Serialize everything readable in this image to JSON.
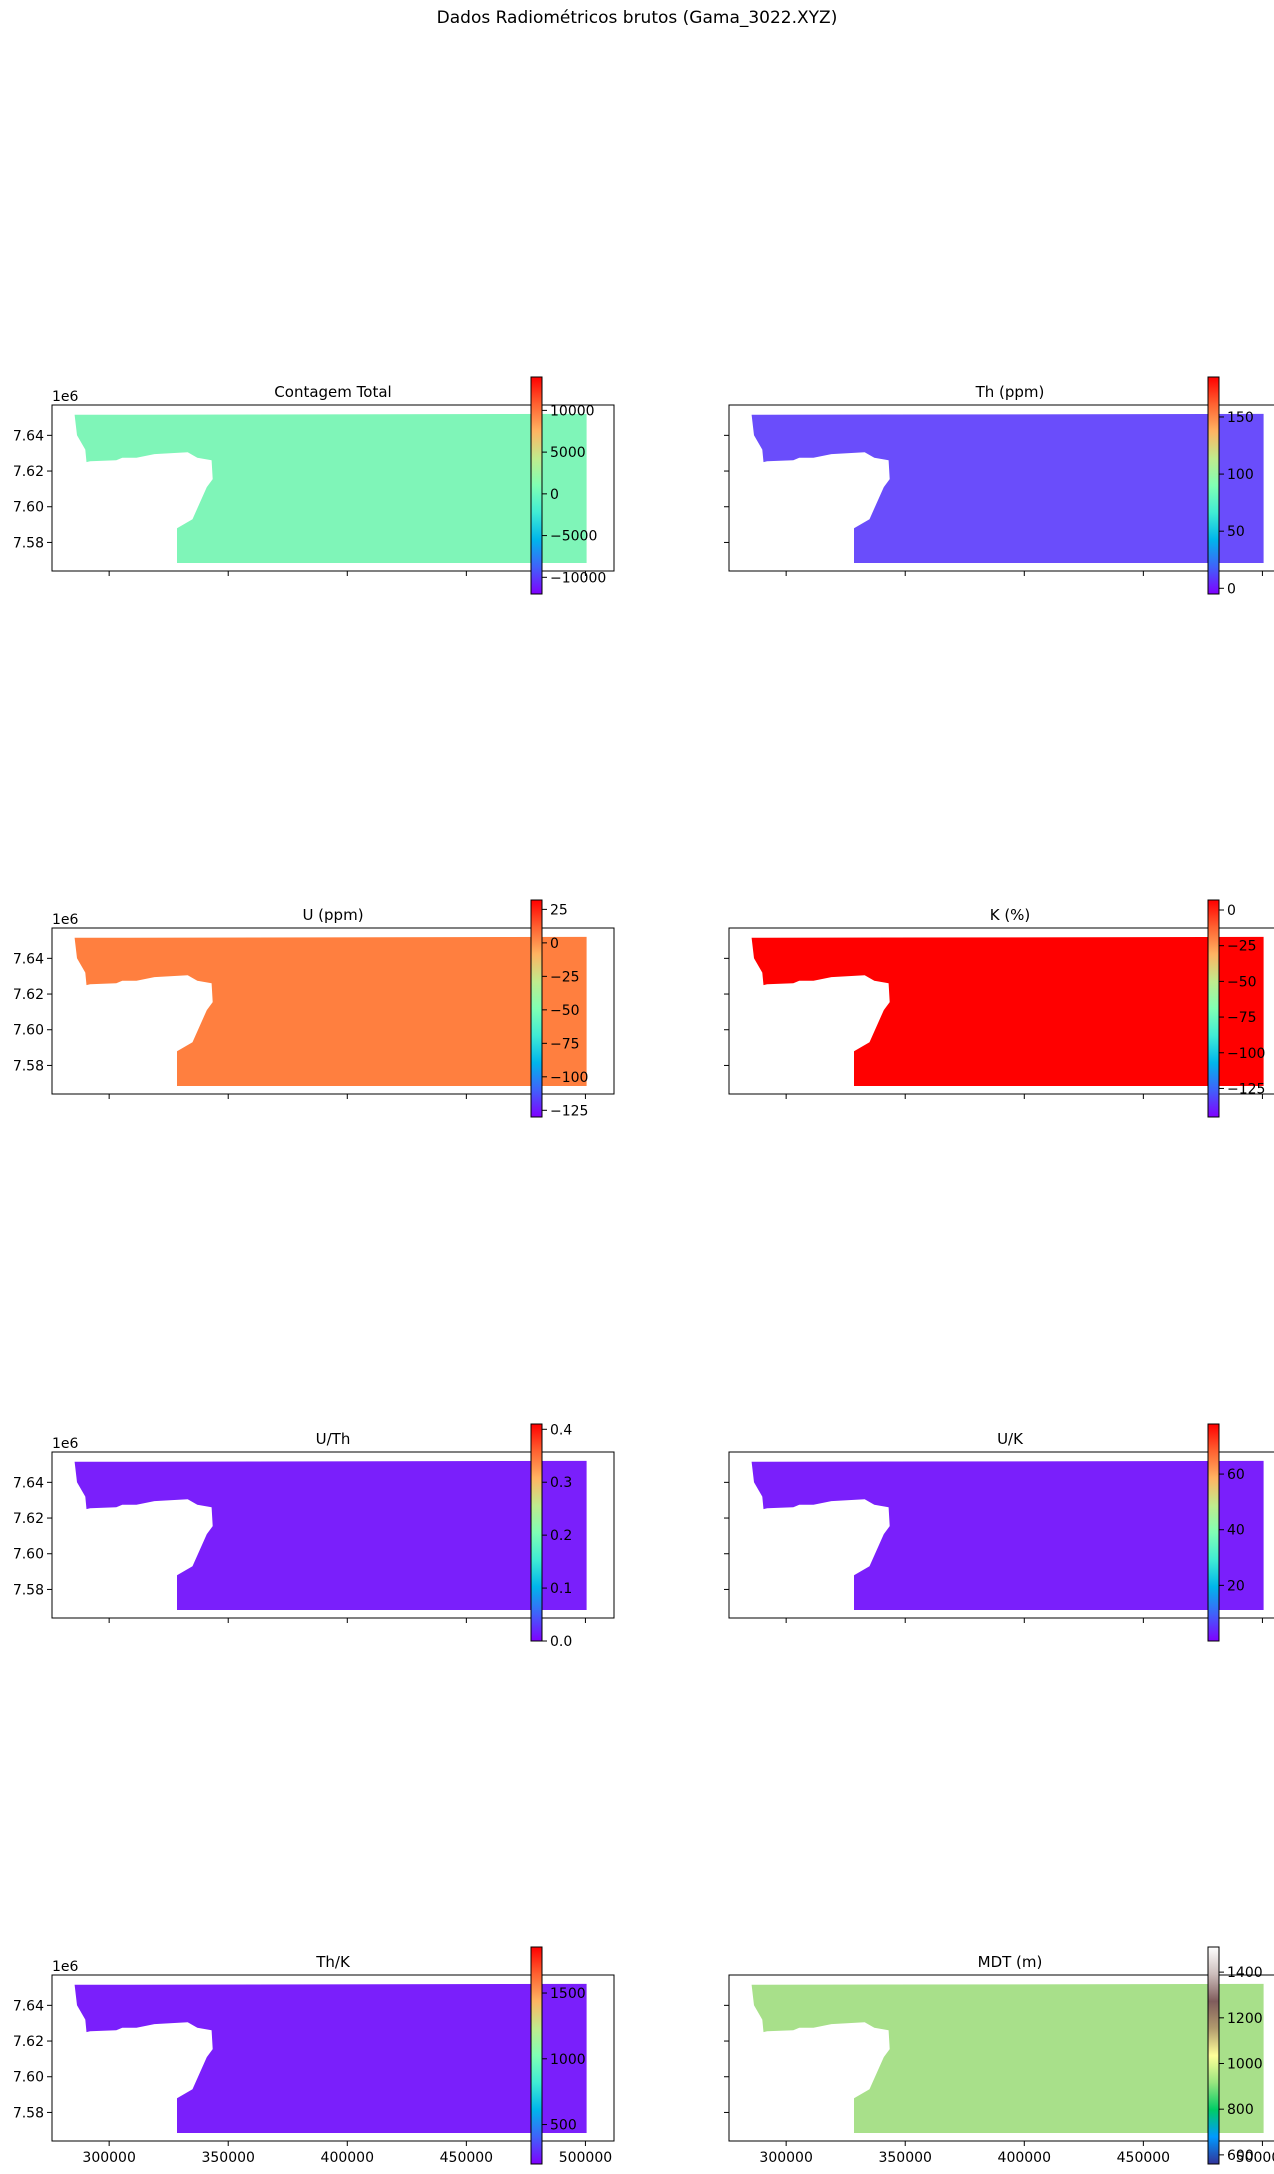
{
  "figure": {
    "title": "Dados Radiométricos brutos (Gama_3022.XYZ)",
    "x_ticks": [
      "300000",
      "350000",
      "400000",
      "450000",
      "500000"
    ],
    "y_ticks": [
      "7.64",
      "7.62",
      "7.60",
      "7.58"
    ],
    "y_offset_label": "1e6"
  },
  "chart_data": [
    {
      "type": "heatmap",
      "title": "Contagem Total",
      "colormap": "rainbow",
      "xlim": [
        276000,
        512000
      ],
      "ylim": [
        7564000,
        7657000
      ],
      "colorbar_range": [
        -12000,
        14000
      ],
      "colorbar_ticks": [
        "10000",
        "5000",
        "0",
        "−5000",
        "−10000"
      ],
      "colorbar_tick_values": [
        10000,
        5000,
        0,
        -5000,
        -10000
      ],
      "fill_color": "#7ff5b8",
      "show_x_labels": false,
      "show_y_labels": true
    },
    {
      "type": "heatmap",
      "title": "Th (ppm)",
      "colormap": "rainbow",
      "xlim": [
        276000,
        512000
      ],
      "ylim": [
        7564000,
        7657000
      ],
      "colorbar_range": [
        -5,
        185
      ],
      "colorbar_ticks": [
        "150",
        "100",
        "50",
        "0"
      ],
      "colorbar_tick_values": [
        150,
        100,
        50,
        0
      ],
      "fill_color": "#6a4dfb",
      "show_x_labels": false,
      "show_y_labels": false
    },
    {
      "type": "heatmap",
      "title": "U (ppm)",
      "colormap": "rainbow",
      "xlim": [
        276000,
        512000
      ],
      "ylim": [
        7564000,
        7657000
      ],
      "colorbar_range": [
        -130,
        32
      ],
      "colorbar_ticks": [
        "25",
        "0",
        "−25",
        "−50",
        "−75",
        "−100",
        "−125"
      ],
      "colorbar_tick_values": [
        25,
        0,
        -25,
        -50,
        -75,
        -100,
        -125
      ],
      "fill_color": "#ff7f3f",
      "show_x_labels": false,
      "show_y_labels": true
    },
    {
      "type": "heatmap",
      "title": "K (%)",
      "colormap": "rainbow",
      "xlim": [
        276000,
        512000
      ],
      "ylim": [
        7564000,
        7657000
      ],
      "colorbar_range": [
        -145,
        7
      ],
      "colorbar_ticks": [
        "0",
        "−25",
        "−50",
        "−75",
        "−100",
        "−125"
      ],
      "colorbar_tick_values": [
        0,
        -25,
        -50,
        -75,
        -100,
        -125
      ],
      "fill_color": "#ff0000",
      "show_x_labels": false,
      "show_y_labels": false
    },
    {
      "type": "heatmap",
      "title": "U/Th",
      "colormap": "rainbow",
      "xlim": [
        276000,
        512000
      ],
      "ylim": [
        7564000,
        7657000
      ],
      "colorbar_range": [
        0,
        0.41
      ],
      "colorbar_ticks": [
        "0.4",
        "0.3",
        "0.2",
        "0.1",
        "0.0"
      ],
      "colorbar_tick_values": [
        0.4,
        0.3,
        0.2,
        0.1,
        0.0
      ],
      "fill_color": "#7a1ffb",
      "show_x_labels": false,
      "show_y_labels": true
    },
    {
      "type": "heatmap",
      "title": "U/K",
      "colormap": "rainbow",
      "xlim": [
        276000,
        512000
      ],
      "ylim": [
        7564000,
        7657000
      ],
      "colorbar_range": [
        0,
        78
      ],
      "colorbar_ticks": [
        "60",
        "40",
        "20"
      ],
      "colorbar_tick_values": [
        60,
        40,
        20
      ],
      "fill_color": "#7a1ffb",
      "show_x_labels": false,
      "show_y_labels": false
    },
    {
      "type": "heatmap",
      "title": "Th/K",
      "colormap": "rainbow",
      "xlim": [
        276000,
        512000
      ],
      "ylim": [
        7564000,
        7657000
      ],
      "colorbar_range": [
        200,
        1850
      ],
      "colorbar_ticks": [
        "1500",
        "1000",
        "500"
      ],
      "colorbar_tick_values": [
        1500,
        1000,
        500
      ],
      "fill_color": "#7a1ffb",
      "show_x_labels": true,
      "show_y_labels": true
    },
    {
      "type": "heatmap",
      "title": "MDT (m)",
      "colormap": "terrain",
      "xlim": [
        276000,
        512000
      ],
      "ylim": [
        7564000,
        7657000
      ],
      "colorbar_range": [
        560,
        1510
      ],
      "colorbar_ticks": [
        "1400",
        "1200",
        "1000",
        "800",
        "600"
      ],
      "colorbar_tick_values": [
        1400,
        1200,
        1000,
        800,
        600
      ],
      "fill_color": "#a8e08a",
      "show_x_labels": true,
      "show_y_labels": false
    }
  ]
}
